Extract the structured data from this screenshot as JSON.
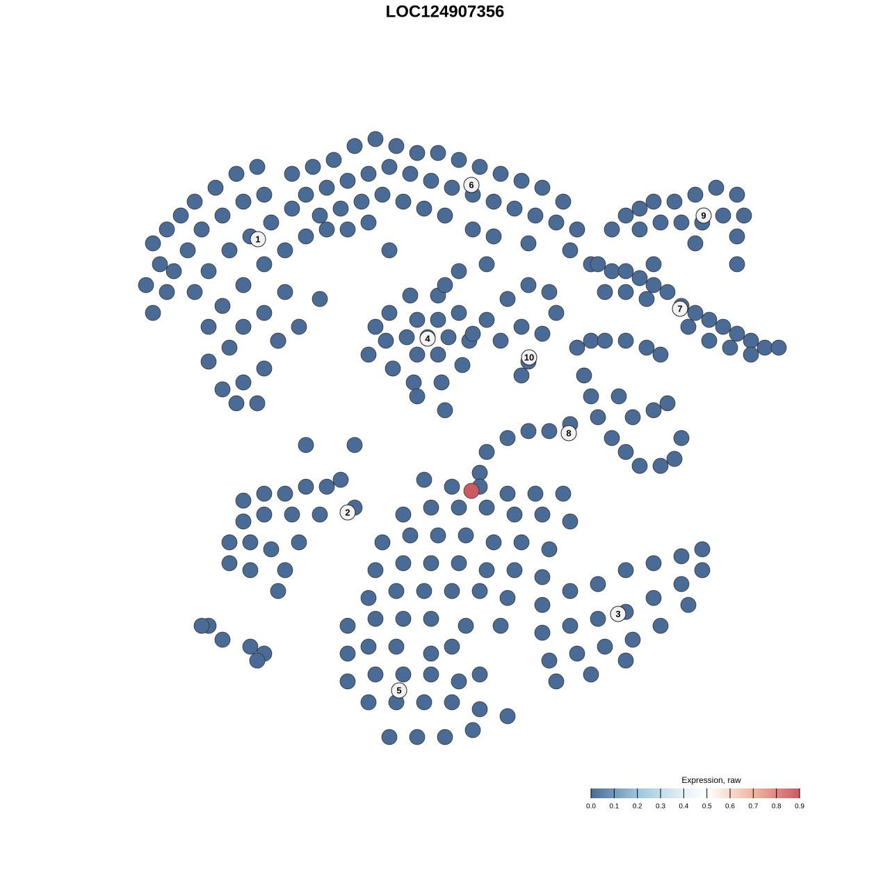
{
  "chart_data": {
    "type": "scatter",
    "title": "LOC124907356",
    "xlim": [
      0,
      93
    ],
    "ylim": [
      0,
      91
    ],
    "color_label": "Expression, raw",
    "clim": [
      0,
      0.9
    ],
    "colorscale": [
      [
        0,
        "#4a6b96"
      ],
      [
        0.2,
        "#9cc6e0"
      ],
      [
        0.4,
        "#e6f0f6"
      ],
      [
        0.5,
        "#ffffff"
      ],
      [
        0.7,
        "#efb7a0"
      ],
      [
        0.9,
        "#cc5a63"
      ]
    ],
    "cticks": [
      {
        "value": 0,
        "label": "0.0"
      },
      {
        "value": 0.1,
        "label": "0.1"
      },
      {
        "value": 0.2,
        "label": "0.2"
      },
      {
        "value": 0.3,
        "label": "0.3"
      },
      {
        "value": 0.4,
        "label": "0.4"
      },
      {
        "value": 0.5,
        "label": "0.5"
      },
      {
        "value": 0.6,
        "label": "0.6"
      },
      {
        "value": 0.7,
        "label": "0.7"
      },
      {
        "value": 0.8,
        "label": "0.8"
      },
      {
        "value": 0.9,
        "label": "0.9"
      }
    ],
    "clusters": [
      {
        "label": "1",
        "x": 17.1,
        "y": 74.6
      },
      {
        "label": "2",
        "x": 30,
        "y": 35.3
      },
      {
        "label": "3",
        "x": 68.9,
        "y": 20.7
      },
      {
        "label": "4",
        "x": 41.5,
        "y": 60.3
      },
      {
        "label": "5",
        "x": 37.4,
        "y": 9.7
      },
      {
        "label": "6",
        "x": 47.8,
        "y": 82.4
      },
      {
        "label": "7",
        "x": 77.8,
        "y": 64.6
      },
      {
        "label": "8",
        "x": 61.8,
        "y": 46.7
      },
      {
        "label": "9",
        "x": 81.2,
        "y": 78
      },
      {
        "label": "10",
        "x": 56.1,
        "y": 57.6
      }
    ],
    "points": [
      [
        2,
        64,
        0
      ],
      [
        1,
        68,
        0
      ],
      [
        3,
        71,
        0
      ],
      [
        2,
        74,
        0
      ],
      [
        4,
        76,
        0
      ],
      [
        6,
        78,
        0
      ],
      [
        8,
        80,
        0
      ],
      [
        11,
        82,
        0
      ],
      [
        14,
        84,
        0
      ],
      [
        17,
        85,
        0
      ],
      [
        5,
        70,
        0
      ],
      [
        7,
        73,
        0
      ],
      [
        9,
        76,
        0
      ],
      [
        12,
        78,
        0
      ],
      [
        15,
        80,
        0
      ],
      [
        18,
        81,
        0
      ],
      [
        8,
        67,
        0
      ],
      [
        10,
        70,
        0
      ],
      [
        13,
        73,
        0
      ],
      [
        16,
        75,
        0
      ],
      [
        19,
        77,
        0
      ],
      [
        22,
        79,
        0
      ],
      [
        10,
        62,
        0
      ],
      [
        12,
        65,
        0
      ],
      [
        15,
        68,
        0
      ],
      [
        18,
        71,
        0
      ],
      [
        21,
        73,
        0
      ],
      [
        10,
        57,
        0
      ],
      [
        13,
        59,
        0
      ],
      [
        15,
        62,
        0
      ],
      [
        18,
        64,
        0
      ],
      [
        21,
        67,
        0
      ],
      [
        12,
        53,
        0
      ],
      [
        15,
        54,
        0
      ],
      [
        18,
        56,
        0
      ],
      [
        20,
        60,
        0
      ],
      [
        23,
        62,
        0
      ],
      [
        4,
        67,
        0
      ],
      [
        14,
        51,
        0
      ],
      [
        17,
        51,
        0
      ],
      [
        22,
        84,
        0
      ],
      [
        25,
        85,
        0
      ],
      [
        28,
        86,
        0
      ],
      [
        31,
        88,
        0
      ],
      [
        34,
        89,
        0
      ],
      [
        37,
        88,
        0
      ],
      [
        40,
        87,
        0
      ],
      [
        43,
        87,
        0
      ],
      [
        46,
        86,
        0
      ],
      [
        49,
        85,
        0
      ],
      [
        52,
        84,
        0
      ],
      [
        55,
        83,
        0
      ],
      [
        58,
        82,
        0
      ],
      [
        61,
        80,
        0
      ],
      [
        24,
        81,
        0
      ],
      [
        27,
        82,
        0
      ],
      [
        30,
        83,
        0
      ],
      [
        33,
        84,
        0
      ],
      [
        36,
        85,
        0
      ],
      [
        39,
        84,
        0
      ],
      [
        42,
        83,
        0
      ],
      [
        45,
        82,
        0
      ],
      [
        48,
        81,
        0
      ],
      [
        51,
        80,
        0
      ],
      [
        54,
        79,
        0
      ],
      [
        57,
        78,
        0
      ],
      [
        60,
        77,
        0
      ],
      [
        63,
        76,
        0
      ],
      [
        26,
        78,
        0
      ],
      [
        29,
        79,
        0
      ],
      [
        32,
        80,
        0
      ],
      [
        35,
        81,
        0
      ],
      [
        38,
        80,
        0
      ],
      [
        41,
        79,
        0
      ],
      [
        44,
        78,
        0
      ],
      [
        24,
        75,
        0
      ],
      [
        27,
        76,
        0
      ],
      [
        30,
        76,
        0
      ],
      [
        33,
        77,
        0
      ],
      [
        48,
        76,
        0
      ],
      [
        51,
        75,
        0
      ],
      [
        56,
        74,
        0
      ],
      [
        62,
        73,
        0
      ],
      [
        65,
        71,
        0
      ],
      [
        36,
        73,
        0
      ],
      [
        46,
        70,
        0
      ],
      [
        50,
        71,
        0
      ],
      [
        44.5,
        60.5,
        0
      ],
      [
        43,
        63,
        0
      ],
      [
        40,
        63,
        0
      ],
      [
        38.5,
        60.5,
        0
      ],
      [
        40,
        58,
        0
      ],
      [
        43,
        58,
        0
      ],
      [
        47.5,
        60,
        0
      ],
      [
        46,
        64,
        0
      ],
      [
        43,
        66.5,
        0
      ],
      [
        39,
        66.5,
        0
      ],
      [
        36,
        64,
        0
      ],
      [
        35.5,
        60,
        0
      ],
      [
        36.5,
        56,
        0
      ],
      [
        39.5,
        54,
        0
      ],
      [
        43.5,
        54,
        0
      ],
      [
        46.5,
        56.5,
        0
      ],
      [
        41.5,
        60.5,
        0
      ],
      [
        33,
        58,
        0
      ],
      [
        34,
        62,
        0
      ],
      [
        40,
        52,
        0
      ],
      [
        44,
        68,
        0
      ],
      [
        50,
        63,
        0
      ],
      [
        53,
        66,
        0
      ],
      [
        56,
        68,
        0
      ],
      [
        59,
        67,
        0
      ],
      [
        55,
        62,
        0
      ],
      [
        58,
        61,
        0
      ],
      [
        56,
        57,
        0
      ],
      [
        55,
        55,
        0
      ],
      [
        48,
        61,
        0
      ],
      [
        52,
        60,
        0
      ],
      [
        60,
        64,
        0
      ],
      [
        68,
        76,
        0
      ],
      [
        70,
        78,
        0
      ],
      [
        72,
        79,
        0
      ],
      [
        74,
        80,
        0
      ],
      [
        77,
        80,
        0
      ],
      [
        80,
        81,
        0
      ],
      [
        83,
        82,
        0
      ],
      [
        86,
        81,
        0
      ],
      [
        87,
        78,
        0
      ],
      [
        86,
        75,
        0
      ],
      [
        84,
        78,
        0
      ],
      [
        81,
        77,
        0
      ],
      [
        78,
        77,
        0
      ],
      [
        75,
        77,
        0
      ],
      [
        72,
        76,
        0
      ],
      [
        80,
        74,
        0
      ],
      [
        86,
        71,
        0
      ],
      [
        66,
        71,
        0
      ],
      [
        68,
        70,
        0
      ],
      [
        70,
        70,
        0
      ],
      [
        72,
        69,
        0
      ],
      [
        74,
        68,
        0
      ],
      [
        76,
        67,
        0
      ],
      [
        78,
        65,
        0
      ],
      [
        80,
        64,
        0
      ],
      [
        82,
        63,
        0
      ],
      [
        84,
        62,
        0
      ],
      [
        86,
        61,
        0
      ],
      [
        88,
        60,
        0
      ],
      [
        90,
        59,
        0
      ],
      [
        92,
        59,
        0
      ],
      [
        70,
        67,
        0
      ],
      [
        73,
        66,
        0
      ],
      [
        79,
        62,
        0
      ],
      [
        82,
        60,
        0
      ],
      [
        85,
        59,
        0
      ],
      [
        88,
        58,
        0
      ],
      [
        74,
        71,
        0
      ],
      [
        67,
        67,
        0
      ],
      [
        63,
        59,
        0
      ],
      [
        65,
        60,
        0
      ],
      [
        67,
        60,
        0
      ],
      [
        70,
        60,
        0
      ],
      [
        73,
        59,
        0
      ],
      [
        75,
        58,
        0
      ],
      [
        64,
        55,
        0
      ],
      [
        65,
        52,
        0
      ],
      [
        66,
        49,
        0
      ],
      [
        68,
        46,
        0
      ],
      [
        69,
        52,
        0
      ],
      [
        71,
        49,
        0
      ],
      [
        74,
        50,
        0
      ],
      [
        76,
        51,
        0
      ],
      [
        70,
        44,
        0
      ],
      [
        72,
        42,
        0
      ],
      [
        75,
        42,
        0
      ],
      [
        77,
        43,
        0
      ],
      [
        78,
        46,
        0
      ],
      [
        50,
        44,
        0
      ],
      [
        53,
        46,
        0
      ],
      [
        56,
        47,
        0
      ],
      [
        59,
        47,
        0
      ],
      [
        62,
        48,
        0
      ],
      [
        49,
        41,
        0
      ],
      [
        15,
        37,
        0
      ],
      [
        18,
        38,
        0
      ],
      [
        21,
        38,
        0
      ],
      [
        24,
        39,
        0
      ],
      [
        27,
        39,
        0
      ],
      [
        29,
        40,
        0
      ],
      [
        15,
        34,
        0
      ],
      [
        18,
        35,
        0
      ],
      [
        22,
        35,
        0
      ],
      [
        26,
        35,
        0
      ],
      [
        31,
        36,
        0
      ],
      [
        13,
        31,
        0
      ],
      [
        16,
        31,
        0
      ],
      [
        19,
        30,
        0
      ],
      [
        23,
        31,
        0
      ],
      [
        13,
        28,
        0
      ],
      [
        16,
        27,
        0
      ],
      [
        21,
        27,
        0
      ],
      [
        20,
        24,
        0
      ],
      [
        10,
        19,
        0
      ],
      [
        12,
        17,
        0
      ],
      [
        16,
        16,
        0
      ],
      [
        18,
        15,
        0
      ],
      [
        41,
        40,
        0
      ],
      [
        45,
        39,
        0
      ],
      [
        49,
        39,
        0
      ],
      [
        53,
        38,
        0
      ],
      [
        57,
        38,
        0
      ],
      [
        61,
        38,
        0
      ],
      [
        38,
        35,
        0
      ],
      [
        42,
        36,
        0
      ],
      [
        46,
        36,
        0
      ],
      [
        50,
        36,
        0
      ],
      [
        54,
        35,
        0
      ],
      [
        58,
        35,
        0
      ],
      [
        62,
        34,
        0
      ],
      [
        35,
        31,
        0
      ],
      [
        39,
        32,
        0
      ],
      [
        43,
        32,
        0
      ],
      [
        47,
        32,
        0
      ],
      [
        51,
        31,
        0
      ],
      [
        55,
        31,
        0
      ],
      [
        59,
        30,
        0
      ],
      [
        34,
        27,
        0
      ],
      [
        38,
        28,
        0
      ],
      [
        42,
        28,
        0
      ],
      [
        46,
        28,
        0
      ],
      [
        50,
        27,
        0
      ],
      [
        54,
        27,
        0
      ],
      [
        58,
        26,
        0
      ],
      [
        33,
        23,
        0
      ],
      [
        37,
        24,
        0
      ],
      [
        41,
        24,
        0
      ],
      [
        45,
        24,
        0
      ],
      [
        49,
        24,
        0
      ],
      [
        53,
        23,
        0
      ],
      [
        30,
        19,
        0
      ],
      [
        34,
        20,
        0
      ],
      [
        38,
        20,
        0
      ],
      [
        42,
        20,
        0
      ],
      [
        47,
        19,
        0
      ],
      [
        52,
        19,
        0
      ],
      [
        30,
        15,
        0
      ],
      [
        33,
        16,
        0
      ],
      [
        37,
        16,
        0
      ],
      [
        42,
        15,
        0
      ],
      [
        45,
        16,
        0
      ],
      [
        30,
        11,
        0
      ],
      [
        34,
        12,
        0
      ],
      [
        38,
        12,
        0
      ],
      [
        42,
        12,
        0
      ],
      [
        46,
        11,
        0
      ],
      [
        49,
        12,
        0
      ],
      [
        33,
        8,
        0
      ],
      [
        37,
        8,
        0
      ],
      [
        41,
        8,
        0
      ],
      [
        45,
        8,
        0
      ],
      [
        49,
        7,
        0
      ],
      [
        53,
        6,
        0
      ],
      [
        36,
        3,
        0
      ],
      [
        40,
        3,
        0
      ],
      [
        44,
        3,
        0
      ],
      [
        48,
        4,
        0
      ],
      [
        58,
        22,
        0
      ],
      [
        62,
        24,
        0
      ],
      [
        66,
        25,
        0
      ],
      [
        70,
        27,
        0
      ],
      [
        74,
        28,
        0
      ],
      [
        78,
        29,
        0
      ],
      [
        81,
        30,
        0
      ],
      [
        58,
        18,
        0
      ],
      [
        62,
        19,
        0
      ],
      [
        66,
        20,
        0
      ],
      [
        70,
        21,
        0
      ],
      [
        74,
        23,
        0
      ],
      [
        78,
        25,
        0
      ],
      [
        81,
        27,
        0
      ],
      [
        59,
        14,
        0
      ],
      [
        63,
        15,
        0
      ],
      [
        67,
        16,
        0
      ],
      [
        71,
        17,
        0
      ],
      [
        75,
        19,
        0
      ],
      [
        79,
        22,
        0
      ],
      [
        60,
        11,
        0
      ],
      [
        65,
        12,
        0
      ],
      [
        70,
        14,
        0
      ],
      [
        24,
        45,
        0
      ],
      [
        31,
        45,
        0
      ],
      [
        44,
        50,
        0
      ],
      [
        20,
        60,
        0
      ],
      [
        26,
        66,
        0
      ],
      [
        9,
        19,
        0
      ],
      [
        17,
        14,
        0
      ],
      [
        47.8,
        38.4,
        0.9
      ]
    ]
  }
}
